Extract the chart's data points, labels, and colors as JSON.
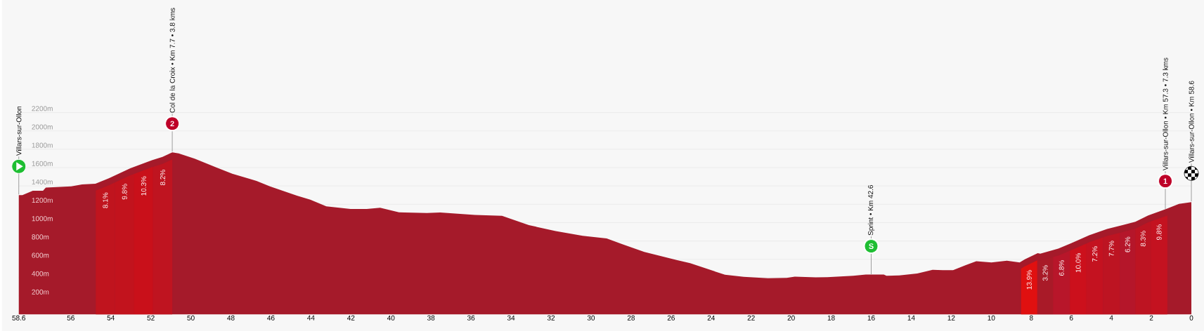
{
  "chart_data": {
    "type": "area",
    "color": "#a51a2a",
    "x": [
      58.6,
      58.42,
      57.9,
      57.39,
      57.25,
      55.98,
      55.44,
      54.77,
      54.1,
      53.03,
      51.95,
      51.42,
      50.93,
      50.61,
      49.81,
      48.73,
      47.93,
      46.72,
      46.05,
      44.7,
      44.03,
      43.23,
      42.02,
      41.21,
      40.54,
      39.6,
      39.32,
      38.21,
      37.54,
      35.8,
      34.45,
      33.11,
      31.77,
      30.42,
      29.22,
      28.41,
      27.34,
      25.73,
      25.05,
      23.31,
      22.37,
      21.16,
      20.22,
      19.82,
      18.77,
      18.19,
      16.9,
      16.27,
      15.37,
      15.24,
      14.6,
      13.7,
      12.93,
      12.42,
      11.91,
      11.27,
      10.75,
      9.99,
      9.22,
      8.58,
      8.32,
      7.68,
      7.55,
      6.65,
      5.88,
      5.11,
      4.21,
      3.44,
      2.8,
      2.16,
      1.26,
      0.62,
      0
    ],
    "values": [
      1300,
      1300,
      1347,
      1347,
      1382,
      1396,
      1417,
      1425,
      1484,
      1592,
      1680,
      1717,
      1767,
      1755,
      1697,
      1601,
      1534,
      1455,
      1396,
      1294,
      1250,
      1177,
      1148,
      1148,
      1163,
      1113,
      1110,
      1104,
      1110,
      1084,
      1075,
      973,
      908,
      856,
      827,
      762,
      681,
      593,
      558,
      432,
      409,
      394,
      397,
      412,
      403,
      406,
      420,
      434,
      434,
      420,
      424,
      445,
      486,
      481,
      481,
      537,
      580,
      566,
      585,
      566,
      601,
      668,
      662,
      717,
      787,
      862,
      931,
      973,
      1009,
      1079,
      1149,
      1205,
      1224
    ],
    "xlim": [
      58.6,
      0
    ],
    "xticks": [
      58.6,
      56,
      54,
      52,
      50,
      48,
      46,
      44,
      42,
      40,
      38,
      36,
      34,
      32,
      30,
      28,
      26,
      24,
      22,
      20,
      18,
      16,
      14,
      12,
      10,
      8,
      6,
      4,
      2,
      0
    ],
    "ylim": [
      0,
      2200
    ],
    "yticks": [
      {
        "value": 200,
        "label": "200m"
      },
      {
        "value": 400,
        "label": "400m"
      },
      {
        "value": 600,
        "label": "600m"
      },
      {
        "value": 800,
        "label": "800m"
      },
      {
        "value": 1000,
        "label": "1000m"
      },
      {
        "value": 1200,
        "label": "1200m"
      },
      {
        "value": 1400,
        "label": "1400m"
      },
      {
        "value": 1600,
        "label": "1600m"
      },
      {
        "value": 1800,
        "label": "1800m"
      },
      {
        "value": 2000,
        "label": "2000m"
      },
      {
        "value": 2200,
        "label": "2200m"
      }
    ],
    "grid": "y",
    "bands": [
      {
        "axis": "x",
        "from": 54.75,
        "to": 53.8,
        "label": "8.1%",
        "color": "#c0141e"
      },
      {
        "axis": "x",
        "from": 53.8,
        "to": 52.83,
        "label": "9.8%",
        "color": "#c2131d"
      },
      {
        "axis": "x",
        "from": 52.83,
        "to": 51.89,
        "label": "10.3%",
        "color": "#c9101a"
      },
      {
        "axis": "x",
        "from": 51.89,
        "to": 50.93,
        "label": "8.2%",
        "color": "#bf1420"
      },
      {
        "axis": "x",
        "from": 8.51,
        "to": 7.7,
        "label": "13.9%",
        "color": "#e01010"
      },
      {
        "axis": "x",
        "from": 7.7,
        "to": 6.91,
        "label": "3.2%",
        "color": "#a91a28"
      },
      {
        "axis": "x",
        "from": 6.91,
        "to": 6.07,
        "label": "6.8%",
        "color": "#b8162a"
      },
      {
        "axis": "x",
        "from": 6.07,
        "to": 5.24,
        "label": "10.0%",
        "color": "#cc101c"
      },
      {
        "axis": "x",
        "from": 5.24,
        "to": 4.41,
        "label": "7.2%",
        "color": "#c41220"
      },
      {
        "axis": "x",
        "from": 4.41,
        "to": 3.58,
        "label": "7.7%",
        "color": "#bd1422"
      },
      {
        "axis": "x",
        "from": 3.58,
        "to": 2.8,
        "label": "6.2%",
        "color": "#b5162a"
      },
      {
        "axis": "x",
        "from": 2.8,
        "to": 2.03,
        "label": "8.3%",
        "color": "#bd1422"
      },
      {
        "axis": "x",
        "from": 2.03,
        "to": 1.2,
        "label": "9.8%",
        "color": "#c41220"
      }
    ],
    "annotations": [
      {
        "text": "Villars-sur-Ollon",
        "x": 58.6,
        "y": 1300
      },
      {
        "text": "Col de la Croix • Km 7.7 • 3.8 kms",
        "x": 50.93,
        "y": 1767
      },
      {
        "text": "2",
        "x": 50.93,
        "y": 1767
      },
      {
        "text": "Sprint • Km 42.6",
        "x": 16,
        "y": 430
      },
      {
        "text": "S",
        "x": 16,
        "y": 430
      },
      {
        "text": "Villars-sur-Ollon • Km 57.3 • 7.3 kms",
        "x": 1.3,
        "y": 1140
      },
      {
        "text": "1",
        "x": 1.3,
        "y": 1140
      },
      {
        "text": "Villars-sur-Ollon • Km 58.6",
        "x": 0,
        "y": 1224
      }
    ]
  }
}
